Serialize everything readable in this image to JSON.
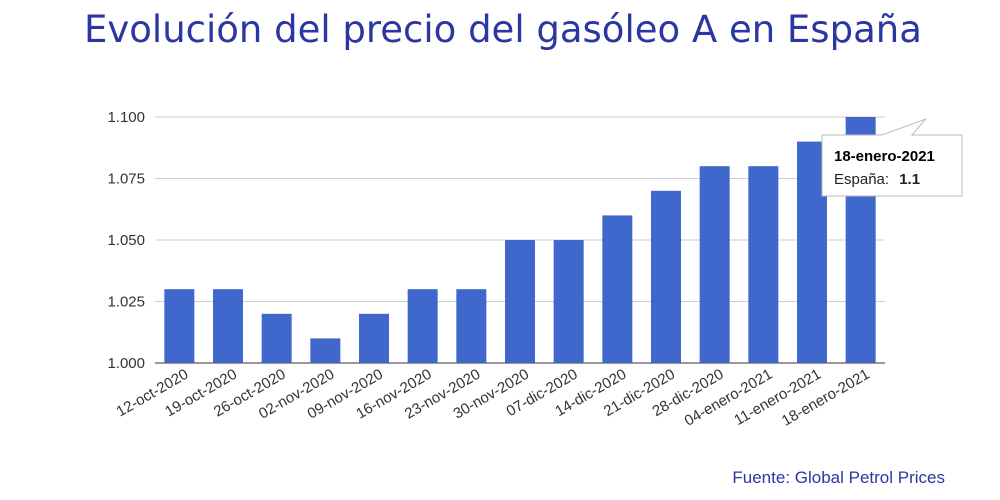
{
  "title": "Evolución del precio del gasóleo A en España",
  "source": "Fuente: Global Petrol Prices",
  "chart_data": {
    "type": "bar",
    "title": "Evolución del precio del gasóleo A en España",
    "categories": [
      "12-oct-2020",
      "19-oct-2020",
      "26-oct-2020",
      "02-nov-2020",
      "09-nov-2020",
      "16-nov-2020",
      "23-nov-2020",
      "30-nov-2020",
      "07-dic-2020",
      "14-dic-2020",
      "21-dic-2020",
      "28-dic-2020",
      "04-enero-2021",
      "11-enero-2021",
      "18-enero-2021"
    ],
    "series": [
      {
        "name": "España",
        "values": [
          1.03,
          1.03,
          1.02,
          1.01,
          1.02,
          1.03,
          1.03,
          1.05,
          1.05,
          1.06,
          1.07,
          1.08,
          1.08,
          1.09,
          1.1
        ]
      }
    ],
    "ylim": [
      1.0,
      1.1
    ],
    "yticks": [
      "1.000",
      "1.025",
      "1.050",
      "1.075",
      "1.100"
    ],
    "grid": true,
    "bar_color": "#3f67cc",
    "tooltip": {
      "title": "18-enero-2021",
      "label": "España:",
      "value": "1.1"
    }
  }
}
